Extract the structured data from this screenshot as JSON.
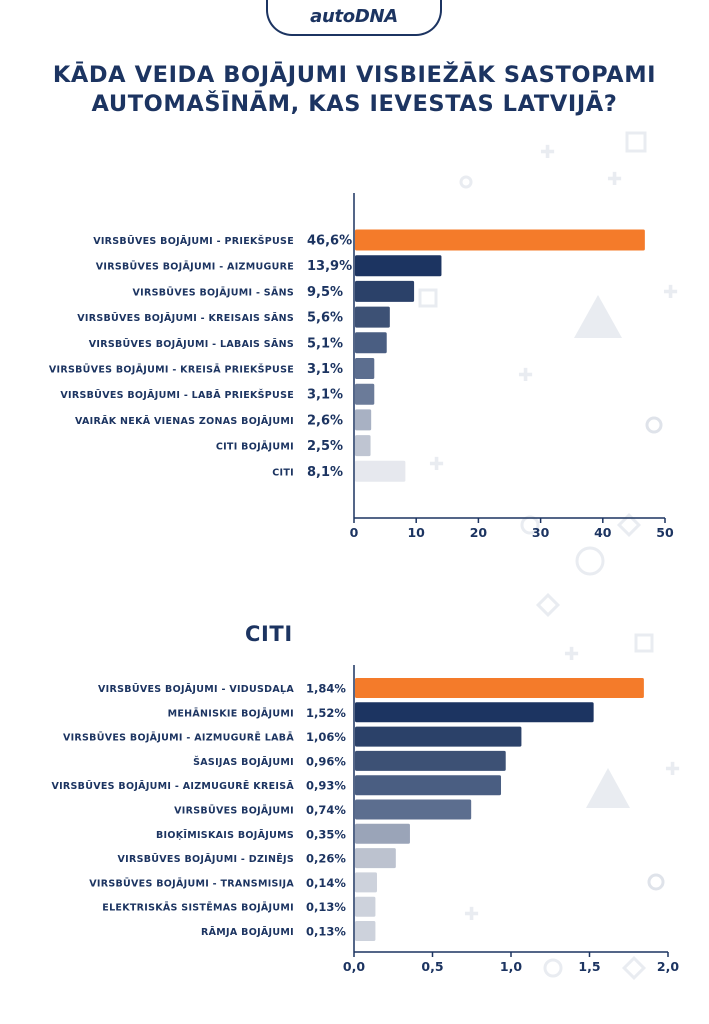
{
  "brand": {
    "logo": "autoDNA"
  },
  "title_line1": "KĀDA VEIDA BOJĀJUMI VISBIEŽĀK SASTOPAMI",
  "title_line2": "AUTOMAŠĪNĀM, KAS IEVESTAS LATVIJĀ?",
  "colors": {
    "accent_orange": "#f47b2a",
    "navy": "#1c3461",
    "axis": "#1c3461",
    "palette_top": [
      "#f47b2a",
      "#1c3461",
      "#2b4169",
      "#3d5175",
      "#4a5e82",
      "#5c6e8f",
      "#6b7b99",
      "#a8b1c3",
      "#bfc5d2",
      "#e6e8ee"
    ],
    "palette_bottom": [
      "#f47b2a",
      "#1c3461",
      "#2b4169",
      "#3d5175",
      "#4a5e82",
      "#5c6e8f",
      "#9aa4b8",
      "#bcc2cf",
      "#cdd2dc",
      "#cdd2dc",
      "#cdd2dc"
    ]
  },
  "chart_data": [
    {
      "type": "bar",
      "orientation": "horizontal",
      "title": "",
      "categories": [
        "VIRSBŪVES BOJĀJUMI - PRIEKŠPUSE",
        "VIRSBŪVES BOJĀJUMI - AIZMUGURE",
        "VIRSBŪVES BOJĀJUMI - SĀNS",
        "VIRSBŪVES BOJĀJUMI - KREISAIS SĀNS",
        "VIRSBŪVES BOJĀJUMI - LABAIS SĀNS",
        "VIRSBŪVES BOJĀJUMI - KREISĀ PRIEKŠPUSE",
        "VIRSBŪVES BOJĀJUMI - LABĀ PRIEKŠPUSE",
        "VAIRĀK NEKĀ VIENAS ZONAS BOJĀJUMI",
        "CITI BOJĀJUMI",
        "CITI"
      ],
      "values": [
        46.6,
        13.9,
        9.5,
        5.6,
        5.1,
        3.1,
        3.1,
        2.6,
        2.5,
        8.1
      ],
      "value_labels": [
        "46,6%",
        "13,9%",
        "9,5%",
        "5,6%",
        "5,1%",
        "3,1%",
        "3,1%",
        "2,6%",
        "2,5%",
        "8,1%"
      ],
      "xlim": [
        0,
        50
      ],
      "ticks": [
        0,
        10,
        20,
        30,
        40,
        50
      ],
      "tick_labels": [
        "0",
        "10",
        "20",
        "30",
        "40",
        "50"
      ],
      "xlabel": "",
      "ylabel": ""
    },
    {
      "type": "bar",
      "orientation": "horizontal",
      "title": "CITI",
      "categories": [
        "VIRSBŪVES BOJĀJUMI - VIDUSDAĻA",
        "MEHĀNISKIE BOJĀJUMI",
        "VIRSBŪVES BOJĀJUMI - AIZMUGURĒ LABĀ",
        "ŠASIJAS BOJĀJUMI",
        "VIRSBŪVES BOJĀJUMI - AIZMUGURĒ KREISĀ",
        "VIRSBŪVES BOJĀJUMI",
        "BIOĶĪMISKAIS BOJĀJUMS",
        "VIRSBŪVES BOJĀJUMI - DZINĒJS",
        "VIRSBŪVES BOJĀJUMI - TRANSMISIJA",
        "ELEKTRISKĀS SISTĒMAS BOJĀJUMI",
        "RĀMJA BOJĀJUMI"
      ],
      "values": [
        1.84,
        1.52,
        1.06,
        0.96,
        0.93,
        0.74,
        0.35,
        0.26,
        0.14,
        0.13,
        0.13
      ],
      "value_labels": [
        "1,84%",
        "1,52%",
        "1,06%",
        "0,96%",
        "0,93%",
        "0,74%",
        "0,35%",
        "0,26%",
        "0,14%",
        "0,13%",
        "0,13%"
      ],
      "xlim": [
        0,
        2.0
      ],
      "ticks": [
        0,
        0.5,
        1.0,
        1.5,
        2.0
      ],
      "tick_labels": [
        "0,0",
        "0,5",
        "1,0",
        "1,5",
        "2,0"
      ],
      "xlabel": "",
      "ylabel": ""
    }
  ]
}
